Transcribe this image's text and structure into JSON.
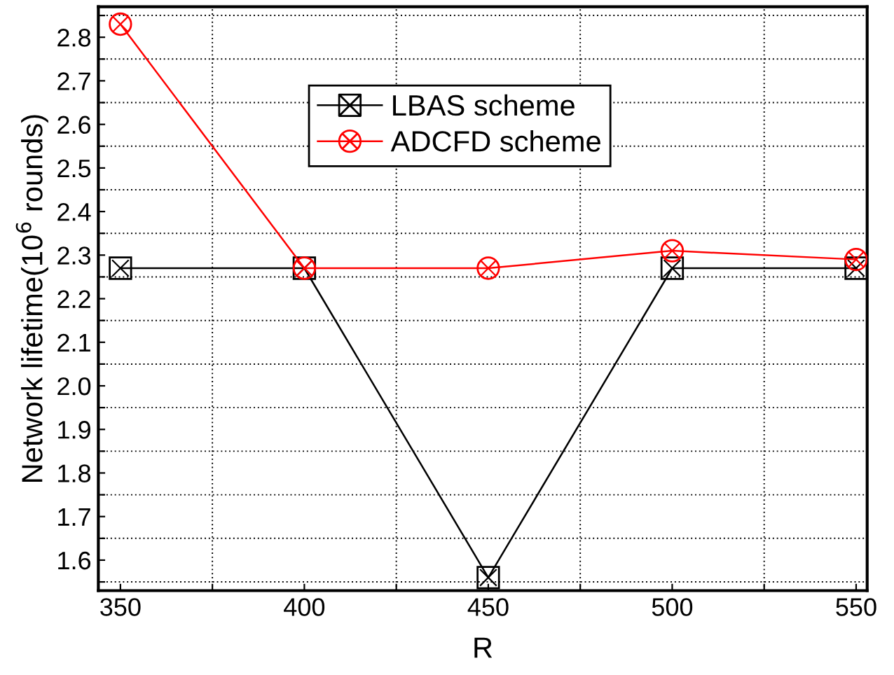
{
  "chart_data": {
    "type": "line",
    "xlabel": "R",
    "ylabel": "Network lifetime(10$^{6}$ rounds)",
    "x": [
      350,
      400,
      450,
      500,
      550
    ],
    "series": [
      {
        "name": "LBAS scheme",
        "color": "#000000",
        "marker": "square",
        "values": [
          2.27,
          2.27,
          1.56,
          2.27,
          2.27
        ]
      },
      {
        "name": "ADCFD scheme",
        "color": "#ff0000",
        "marker": "circle",
        "values": [
          2.83,
          2.27,
          2.27,
          2.31,
          2.29
        ]
      }
    ],
    "xlim": [
      344,
      553
    ],
    "ylim": [
      1.53,
      2.87
    ],
    "xticks": [
      350,
      {
        "value": 375,
        "label": null
      },
      400,
      {
        "value": 425,
        "label": null
      },
      450,
      {
        "value": 475,
        "label": null
      },
      500,
      {
        "value": 525,
        "label": null
      },
      550
    ],
    "yticks": [
      {
        "value": 1.55,
        "label": null
      },
      1.6,
      {
        "value": 1.65,
        "label": null
      },
      1.7,
      {
        "value": 1.75,
        "label": null
      },
      1.8,
      {
        "value": 1.85,
        "label": null
      },
      1.9,
      {
        "value": 1.95,
        "label": null
      },
      {
        "value": 2.0,
        "label": "2.0"
      },
      {
        "value": 2.05,
        "label": null
      },
      2.1,
      {
        "value": 2.15,
        "label": null
      },
      2.2,
      {
        "value": 2.25,
        "label": null
      },
      2.3,
      {
        "value": 2.35,
        "label": null
      },
      2.4,
      {
        "value": 2.45,
        "label": null
      },
      2.5,
      {
        "value": 2.55,
        "label": null
      },
      2.6,
      {
        "value": 2.65,
        "label": null
      },
      2.7,
      {
        "value": 2.75,
        "label": null
      },
      2.8,
      {
        "value": 2.85,
        "label": null
      }
    ],
    "grid": "minor",
    "legend": "top",
    "line_style": "solid"
  }
}
